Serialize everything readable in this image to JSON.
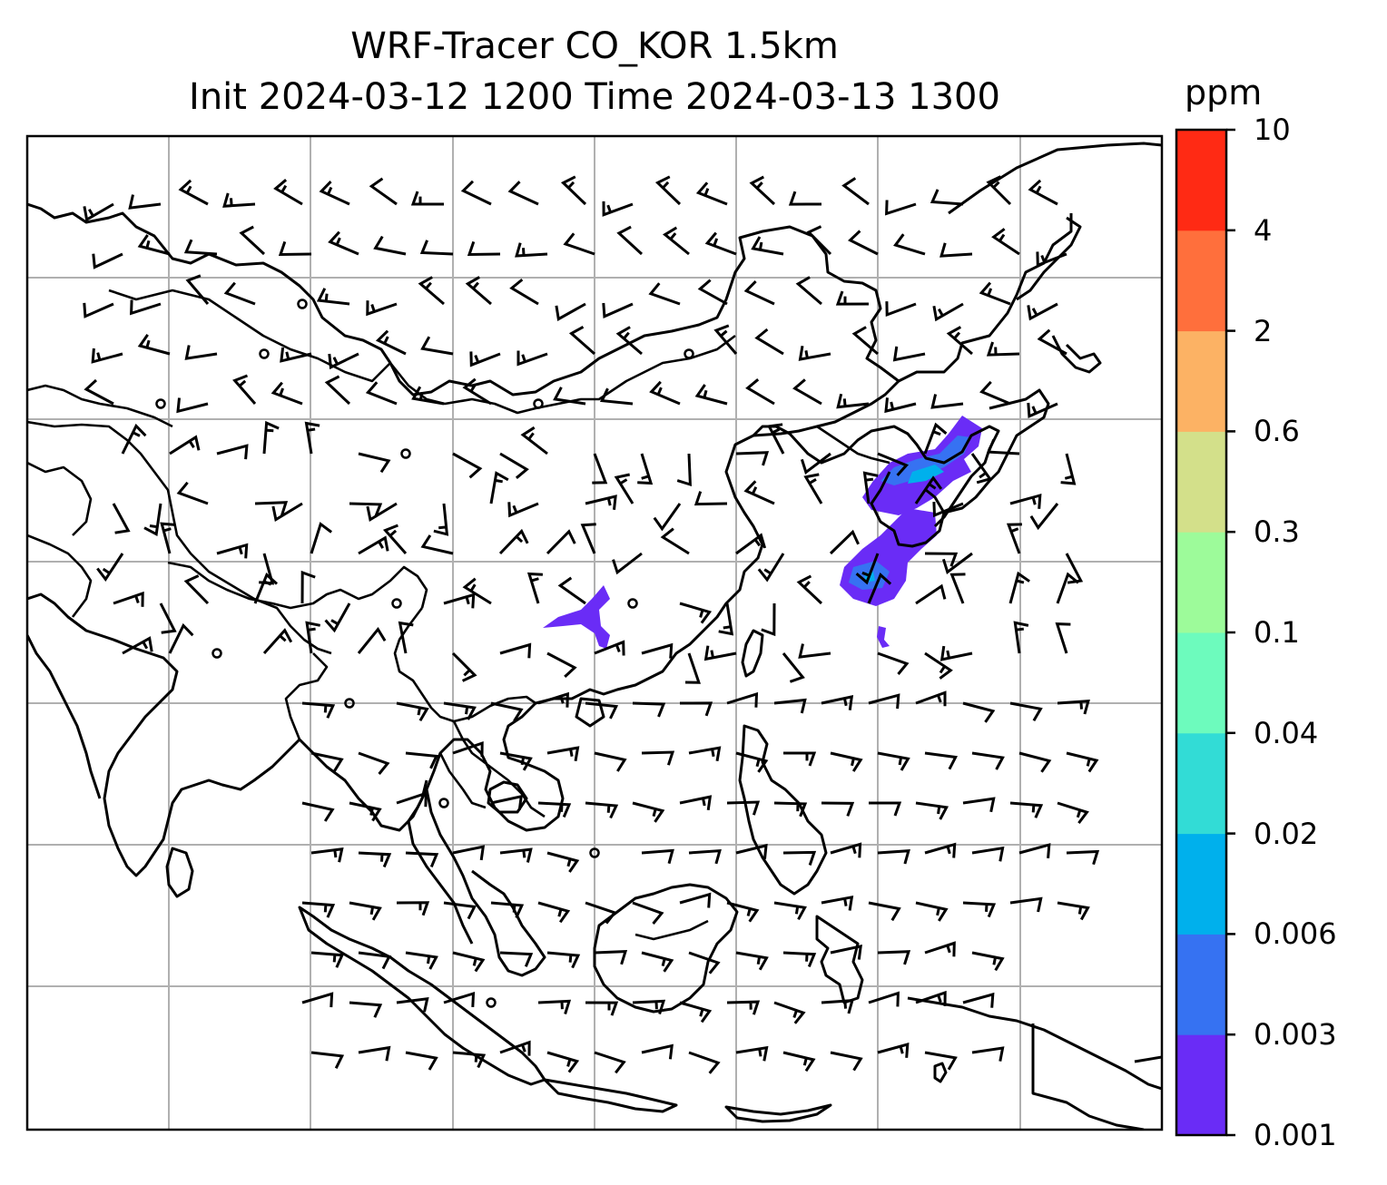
{
  "title": {
    "line1": "WRF-Tracer CO_KOR 1.5km",
    "line2": "Init 2024-03-12 1200 Time 2024-03-13 1300"
  },
  "colorbar": {
    "unit": "ppm",
    "levels": [
      "0.001",
      "0.003",
      "0.006",
      "0.02",
      "0.04",
      "0.1",
      "0.3",
      "0.6",
      "2",
      "4",
      "10"
    ],
    "colors": [
      "#6a2cf6",
      "#3672f2",
      "#00b0ec",
      "#32dcd6",
      "#6dfbbd",
      "#9dfb9a",
      "#d3e08a",
      "#fcb264",
      "#ff6f3c",
      "#ff2a14"
    ]
  },
  "map": {
    "gridlines": true,
    "coastline_color": "#000000",
    "grid_color": "#b0b0b0"
  }
}
